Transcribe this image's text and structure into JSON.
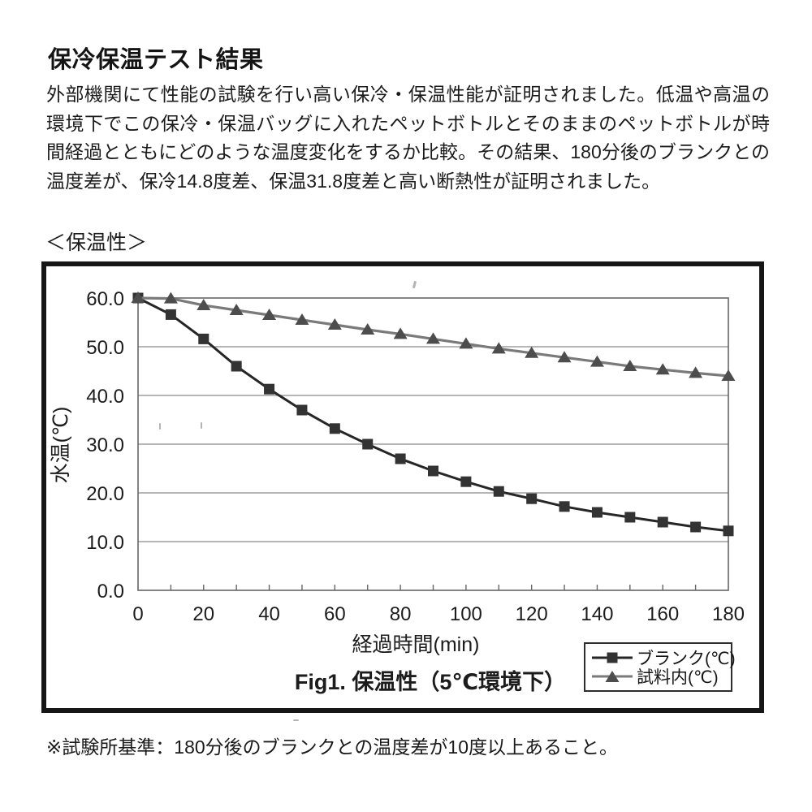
{
  "document": {
    "heading": "保冷保温テスト結果",
    "body_text": "外部機関にて性能の試験を行い高い保冷・保温性能が証明されました。低温や高温の環境下でこの保冷・保温バッグに入れたペットボトルとそのままのペットボトルが時間経過とともにどのような温度変化をするか比較。その結果、180分後のブランクとの温度差が、保冷14.8度差、保温31.8度差と高い断熱性が証明されました。",
    "section_label": "＜保温性＞",
    "footnote": "※試験所基準：180分後のブランクとの温度差が10度以上あること。"
  },
  "chart_data": {
    "type": "line",
    "title": "Fig1. 保温性（5℃環境下）",
    "xlabel": "経過時間(min)",
    "ylabel": "水温(℃)",
    "x": [
      0,
      10,
      20,
      30,
      40,
      50,
      60,
      70,
      80,
      90,
      100,
      110,
      120,
      130,
      140,
      150,
      160,
      170,
      180
    ],
    "series": [
      {
        "name": "ブランク(℃)",
        "marker": "square",
        "line_color": "#262626",
        "marker_color": "#333333",
        "values": [
          60.0,
          56.6,
          51.6,
          46.0,
          41.3,
          37.0,
          33.2,
          30.0,
          27.0,
          24.5,
          22.3,
          20.3,
          18.8,
          17.2,
          16.0,
          15.0,
          14.0,
          13.0,
          12.2
        ]
      },
      {
        "name": "試料内(℃)",
        "marker": "triangle",
        "line_color": "#7a7a7a",
        "marker_color": "#4d4d4d",
        "values": [
          60.0,
          59.9,
          58.5,
          57.5,
          56.5,
          55.5,
          54.5,
          53.5,
          52.6,
          51.6,
          50.6,
          49.6,
          48.7,
          47.8,
          46.9,
          46.0,
          45.3,
          44.6,
          44.0
        ]
      }
    ],
    "xlim": [
      0,
      180
    ],
    "ylim": [
      0,
      60
    ],
    "x_tick_labels": [
      "0",
      "20",
      "40",
      "60",
      "80",
      "100",
      "120",
      "140",
      "160",
      "180"
    ],
    "x_minor_tick_step": 10,
    "y_tick_labels": [
      "60.0",
      "50.0",
      "40.0",
      "30.0",
      "20.0",
      "10.0",
      "0.0"
    ],
    "grid": true,
    "legend_position": "bottom-right"
  }
}
